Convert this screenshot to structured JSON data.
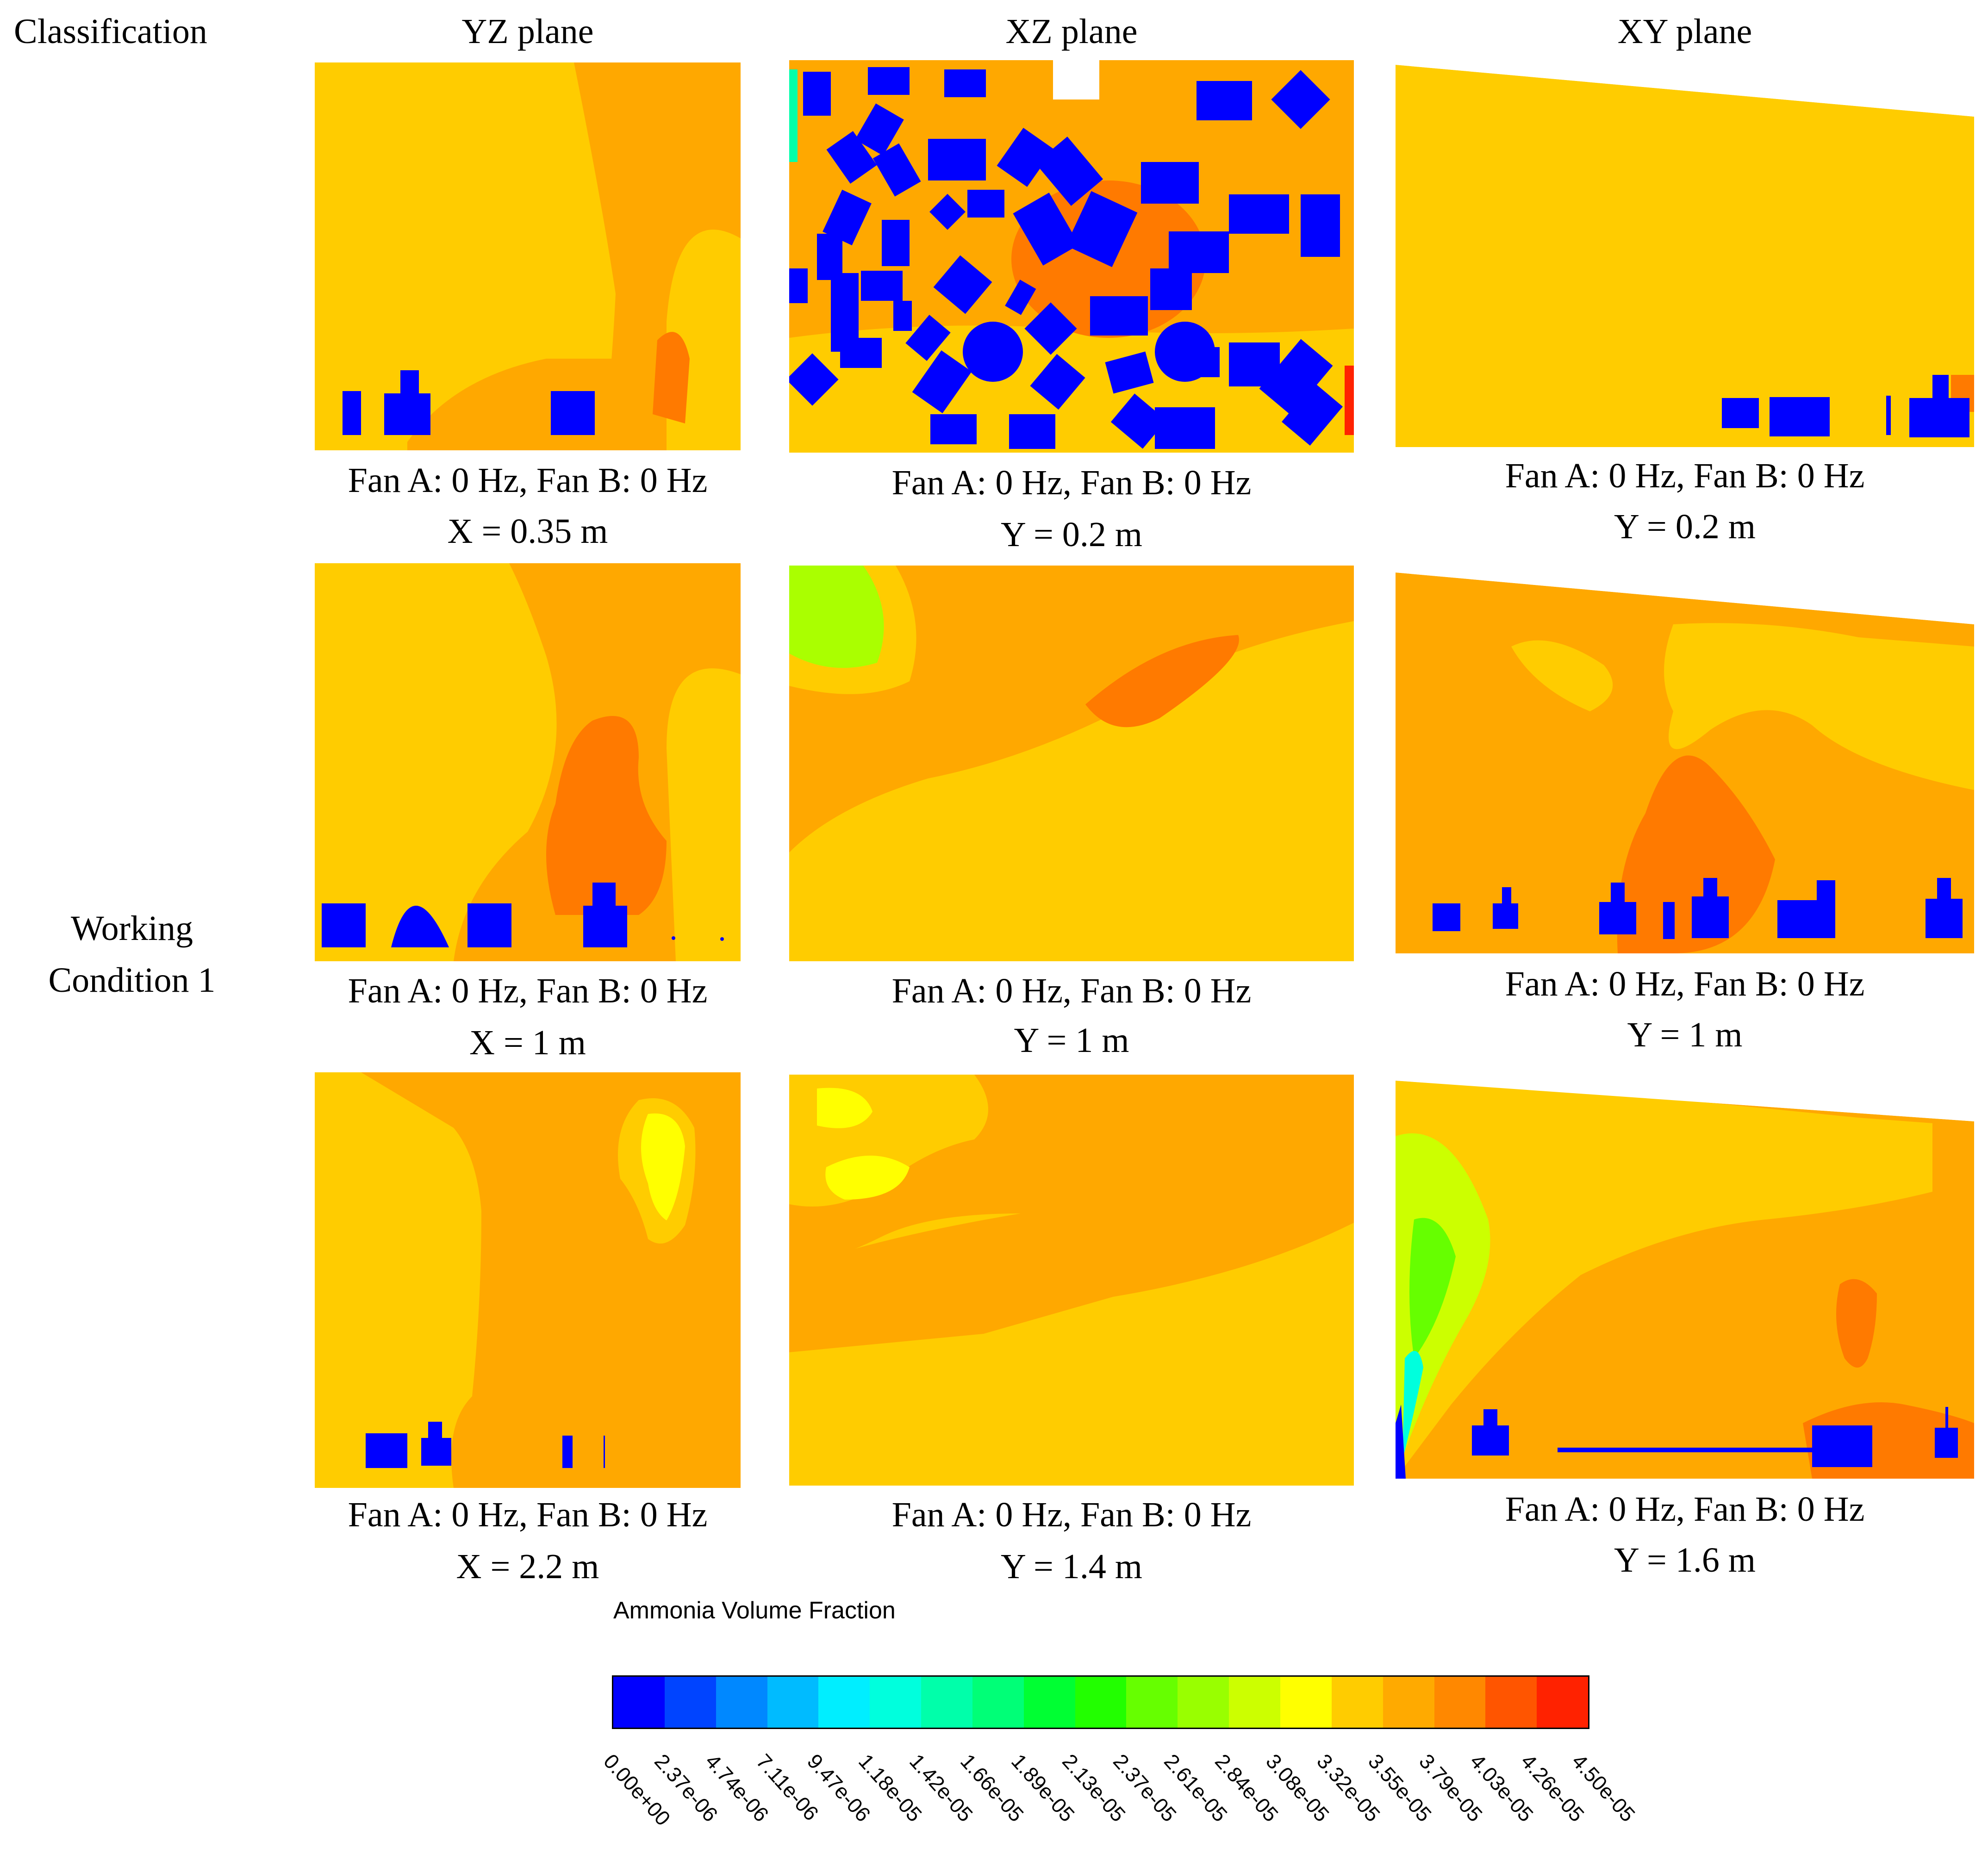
{
  "header": {
    "classification": "Classification",
    "yz": "YZ plane",
    "xz": "XZ plane",
    "xy": "XY plane"
  },
  "row_label": "Working\nCondition 1",
  "panels": [
    {
      "fan": "Fan A: 0 Hz, Fan B: 0 Hz",
      "pos": "X = 0.35 m"
    },
    {
      "fan": "Fan A: 0 Hz, Fan B: 0 Hz",
      "pos": "Y = 0.2 m"
    },
    {
      "fan": "Fan A: 0 Hz, Fan B: 0 Hz",
      "pos": "Y = 0.2 m"
    },
    {
      "fan": "Fan A: 0 Hz, Fan B: 0 Hz",
      "pos": "X = 1 m"
    },
    {
      "fan": "Fan A: 0 Hz, Fan B: 0 Hz",
      "pos": "Y = 1 m"
    },
    {
      "fan": "Fan A: 0 Hz, Fan B: 0 Hz",
      "pos": "Y = 1 m"
    },
    {
      "fan": "Fan A: 0 Hz, Fan B: 0 Hz",
      "pos": "X = 2.2 m"
    },
    {
      "fan": "Fan A: 0 Hz, Fan B: 0 Hz",
      "pos": "Y = 1.4 m"
    },
    {
      "fan": "Fan A: 0 Hz, Fan B: 0 Hz",
      "pos": "Y = 1.6 m"
    }
  ],
  "legend": {
    "title": "Ammonia Volume Fraction",
    "ticks": [
      "0.00e+00",
      "2.37e-06",
      "4.74e-06",
      "7.11e-06",
      "9.47e-06",
      "1.18e-05",
      "1.42e-05",
      "1.66e-05",
      "1.89e-05",
      "2.13e-05",
      "2.37e-05",
      "2.61e-05",
      "2.84e-05",
      "3.08e-05",
      "3.32e-05",
      "3.55e-05",
      "3.79e-05",
      "4.03e-05",
      "4.26e-05",
      "4.50e-05"
    ],
    "colors": [
      "#0000ff",
      "#0044ff",
      "#0088ff",
      "#00bbff",
      "#00eeff",
      "#00ffdd",
      "#00ffaa",
      "#00ff77",
      "#00ff33",
      "#22ff00",
      "#66ff00",
      "#99ff00",
      "#ccff00",
      "#ffff00",
      "#ffcc00",
      "#ffaa00",
      "#ff8800",
      "#ff5500",
      "#ff2200"
    ]
  },
  "palette": {
    "base": "#ffcc00",
    "mid": "#ffa800",
    "hot": "#ff7a00",
    "obstacle": "#0000ff",
    "green": "#aaff00",
    "yellow": "#ffff00"
  }
}
